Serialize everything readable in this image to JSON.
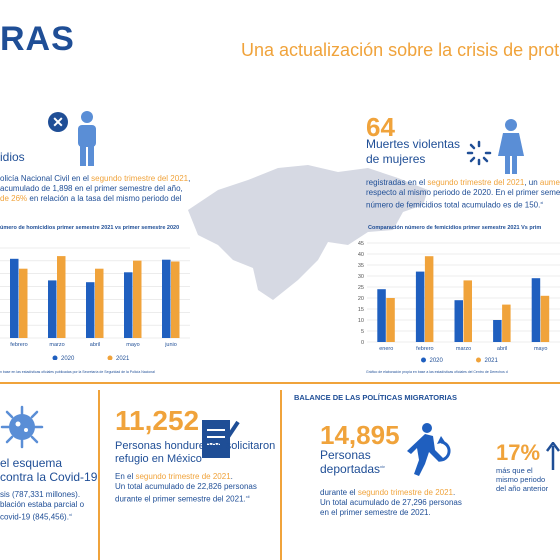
{
  "header": {
    "title_left": "RAS",
    "title_right": "Una actualización sobre la crisis de protecc"
  },
  "homicides_block": {
    "label_partial": "idios",
    "line1_a": "olicía Nacional Civil en el ",
    "line1_b": "segundo trimestre del 2021",
    "line1_c": ",",
    "line2": "acumulado de 1,898 en el primer semestre del año,",
    "line3_a": "de 26%",
    "line3_b": " en relación a la tasa del mismo periodo del",
    "chart_title": "úmero de homicidios primer semestre 2021 vs primer semestre 2020",
    "source": "n base en las estadísticas oficiales publicadas por la Secretaría de Seguridad de la Policía Nacional"
  },
  "femicides_block": {
    "number": "64",
    "label1": "Muertes violentas",
    "label2": "de mujeres",
    "line1_a": "registradas en el ",
    "line1_b": "segundo trimestre del 2021",
    "line1_c": ", un ",
    "line1_d": "aumento",
    "line2": "respecto al mismo periodo de 2020. En el primer semest",
    "line3": "número de femicidios total acumulado es de 150.",
    "line3_sup": "xi",
    "chart_title": "Comparación número de femicidios primer semestre 2021 Vs prim",
    "source": "Gráfico de elaboración propia en base a las estadísticas oficiales del Centro de Derechos d"
  },
  "chart_data": [
    {
      "type": "bar",
      "title": "úmero de homicidios primer semestre 2021 vs primer semestre 2020",
      "categories": [
        "febrero",
        "marzo",
        "abril",
        "mayo",
        "junio"
      ],
      "series": [
        {
          "name": "2020",
          "color": "#1f5fbf",
          "values": [
            88,
            64,
            62,
            73,
            87
          ]
        },
        {
          "name": "2021",
          "color": "#f0a33b",
          "values": [
            77,
            91,
            77,
            86,
            85
          ]
        }
      ],
      "legend": "bottom",
      "grid": true
    },
    {
      "type": "bar",
      "title": "Comparación número de femicidios primer semestre 2021 Vs prim",
      "categories": [
        "enero",
        "febrero",
        "marzo",
        "abril",
        "mayo"
      ],
      "series": [
        {
          "name": "2020",
          "color": "#1f5fbf",
          "values": [
            24,
            32,
            19,
            10,
            29
          ]
        },
        {
          "name": "2021",
          "color": "#f0a33b",
          "values": [
            20,
            39,
            28,
            17,
            21
          ]
        }
      ],
      "yticks": [
        "0",
        "5",
        "10",
        "15",
        "20",
        "25",
        "30",
        "35",
        "40",
        "45"
      ],
      "ylim": [
        0,
        45
      ],
      "legend": "bottom",
      "grid": true
    }
  ],
  "vaccine_block": {
    "line1": "el esquema",
    "line2": "contra la Covid-19",
    "t1": "sis (787,331 millones).",
    "t2": "blación estaba parcial o",
    "t3": "covid-19 (845,456).",
    "t3_sup": "xi"
  },
  "refuge_block": {
    "number": "11,252",
    "label1": "Personas hondureñas solicitaron",
    "label2": "refugio en México",
    "line1_a": "En el ",
    "line1_b": "segundo trimestre de 2021",
    "line1_c": ".",
    "line2": "Un total acumulado de 22,826 personas",
    "line3": "durante el primer semestre del 2021.",
    "line3_sup": "xii"
  },
  "migration_block": {
    "title": "BALANCE DE LAS POLÍTICAS MIGRATORIAS",
    "number": "14,895",
    "label1": "Personas",
    "label2": "deportadas",
    "label2_sup": "xiv",
    "line1_a": "durante el ",
    "line1_b": "segundo trimestre de 2021",
    "line1_c": ".",
    "line2": "Un total acumulado de 27,296 personas",
    "line3": "en el primer semestre de 2021.",
    "pct": "17%",
    "pct_l1": "más que el",
    "pct_l2": "mismo periodo",
    "pct_l3": "del año anterior"
  }
}
